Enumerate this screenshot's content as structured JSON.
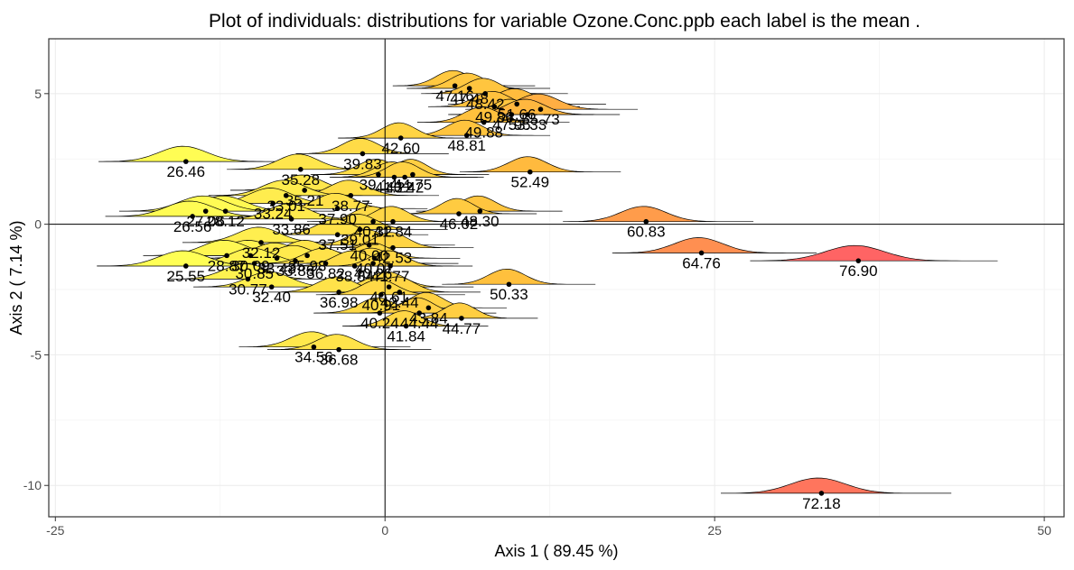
{
  "chart_data": {
    "type": "scatter",
    "title": "Plot of individuals: distributions for variable Ozone.Conc.ppb each label is the  mean .",
    "xlabel": "Axis  1  ( 89.45 %)",
    "ylabel": "Axis  2  ( 7.14 %)",
    "xlim": [
      -25.5,
      51.5
    ],
    "ylim": [
      -11.2,
      7.1
    ],
    "x_ticks": [
      -25,
      0,
      25,
      50
    ],
    "y_ticks": [
      -10,
      -5,
      0,
      5
    ],
    "x_tick_labels": [
      "-25",
      "0",
      "25",
      "50"
    ],
    "y_tick_labels": [
      "-10",
      "-5",
      "0",
      "5"
    ],
    "grid": true,
    "legend": "none",
    "color_low": "#ffff55",
    "color_high": "#ff6464",
    "points": [
      {
        "x": 33.1,
        "y": -10.3,
        "label": "72.18"
      },
      {
        "x": 35.9,
        "y": -1.4,
        "label": "76.90"
      },
      {
        "x": 24.0,
        "y": -1.1,
        "label": "64.76"
      },
      {
        "x": 19.8,
        "y": 0.1,
        "label": "60.83"
      },
      {
        "x": 11.0,
        "y": 2.0,
        "label": "52.49"
      },
      {
        "x": 9.4,
        "y": -2.3,
        "label": "50.33"
      },
      {
        "x": 7.2,
        "y": 0.5,
        "label": "48.30"
      },
      {
        "x": 6.2,
        "y": 3.4,
        "label": "48.81"
      },
      {
        "x": 7.5,
        "y": 3.9,
        "label": "49.88"
      },
      {
        "x": 8.3,
        "y": 4.5,
        "label": "49.86"
      },
      {
        "x": 9.6,
        "y": 4.2,
        "label": "47.95"
      },
      {
        "x": 11.8,
        "y": 4.4,
        "label": "55.73"
      },
      {
        "x": 10.8,
        "y": 4.2,
        "label": "53.33"
      },
      {
        "x": 10.0,
        "y": 4.6,
        "label": "51.66"
      },
      {
        "x": 7.6,
        "y": 5.0,
        "label": "48.42"
      },
      {
        "x": 6.4,
        "y": 5.2,
        "label": "47.48"
      },
      {
        "x": 5.3,
        "y": 5.3,
        "label": "47.16"
      },
      {
        "x": 1.2,
        "y": 3.3,
        "label": "42.60"
      },
      {
        "x": -1.7,
        "y": 2.7,
        "label": "39.83"
      },
      {
        "x": 2.1,
        "y": 1.9,
        "label": "44.75"
      },
      {
        "x": 0.7,
        "y": 1.8,
        "label": "41.22"
      },
      {
        "x": 1.5,
        "y": 1.8,
        "label": "43.42"
      },
      {
        "x": -0.5,
        "y": 1.9,
        "label": "39.14"
      },
      {
        "x": -6.4,
        "y": 2.1,
        "label": "35.28"
      },
      {
        "x": -15.1,
        "y": 2.4,
        "label": "26.46"
      },
      {
        "x": -2.6,
        "y": 1.1,
        "label": "38.77"
      },
      {
        "x": -7.5,
        "y": 1.1,
        "label": "33.01"
      },
      {
        "x": -6.1,
        "y": 1.3,
        "label": "35.21"
      },
      {
        "x": -8.5,
        "y": 0.8,
        "label": "33.24"
      },
      {
        "x": -12.1,
        "y": 0.5,
        "label": "28.12"
      },
      {
        "x": -13.6,
        "y": 0.5,
        "label": "27.06"
      },
      {
        "x": -14.6,
        "y": 0.3,
        "label": "26.56"
      },
      {
        "x": 5.6,
        "y": 0.4,
        "label": "46.02"
      },
      {
        "x": -3.6,
        "y": 0.6,
        "label": "37.90"
      },
      {
        "x": -7.1,
        "y": 0.2,
        "label": "33.86"
      },
      {
        "x": -0.9,
        "y": 0.1,
        "label": "40.32"
      },
      {
        "x": 0.6,
        "y": 0.1,
        "label": "41.84"
      },
      {
        "x": -1.9,
        "y": -0.2,
        "label": "39.01"
      },
      {
        "x": -9.4,
        "y": -0.7,
        "label": "32.12"
      },
      {
        "x": -3.6,
        "y": -0.4,
        "label": "37.51"
      },
      {
        "x": -1.2,
        "y": -0.8,
        "label": "40.00"
      },
      {
        "x": 0.6,
        "y": -0.9,
        "label": "42.53"
      },
      {
        "x": -0.8,
        "y": -1.3,
        "label": "40.07"
      },
      {
        "x": -10.2,
        "y": -1.2,
        "label": "30.09"
      },
      {
        "x": -12.0,
        "y": -1.2,
        "label": "28.87"
      },
      {
        "x": -5.9,
        "y": -1.2,
        "label": "35.98"
      },
      {
        "x": -8.2,
        "y": -1.3,
        "label": "33.43"
      },
      {
        "x": -6.8,
        "y": -1.4,
        "label": "33.88"
      },
      {
        "x": -9.9,
        "y": -1.5,
        "label": "30.85"
      },
      {
        "x": -4.5,
        "y": -1.5,
        "label": "36.82"
      },
      {
        "x": -2.3,
        "y": -1.6,
        "label": "38.84"
      },
      {
        "x": -0.9,
        "y": -1.5,
        "label": "40.26"
      },
      {
        "x": -15.1,
        "y": -1.6,
        "label": "25.55"
      },
      {
        "x": 0.4,
        "y": -1.6,
        "label": "41.77"
      },
      {
        "x": 0.3,
        "y": -2.4,
        "label": "40.61"
      },
      {
        "x": -10.4,
        "y": -2.1,
        "label": "30.77"
      },
      {
        "x": -8.6,
        "y": -2.4,
        "label": "32.40"
      },
      {
        "x": -3.5,
        "y": -2.6,
        "label": "36.98"
      },
      {
        "x": -0.3,
        "y": -2.7,
        "label": "40.91"
      },
      {
        "x": 1.1,
        "y": -2.6,
        "label": "42.44"
      },
      {
        "x": 3.3,
        "y": -3.2,
        "label": "43.84"
      },
      {
        "x": 5.8,
        "y": -3.6,
        "label": "44.77"
      },
      {
        "x": -0.4,
        "y": -3.4,
        "label": "40.24"
      },
      {
        "x": 2.6,
        "y": -3.4,
        "label": "44.44"
      },
      {
        "x": 1.6,
        "y": -3.9,
        "label": "41.84"
      },
      {
        "x": -5.4,
        "y": -4.7,
        "label": "34.56"
      },
      {
        "x": -3.5,
        "y": -4.8,
        "label": "36.68"
      }
    ]
  }
}
